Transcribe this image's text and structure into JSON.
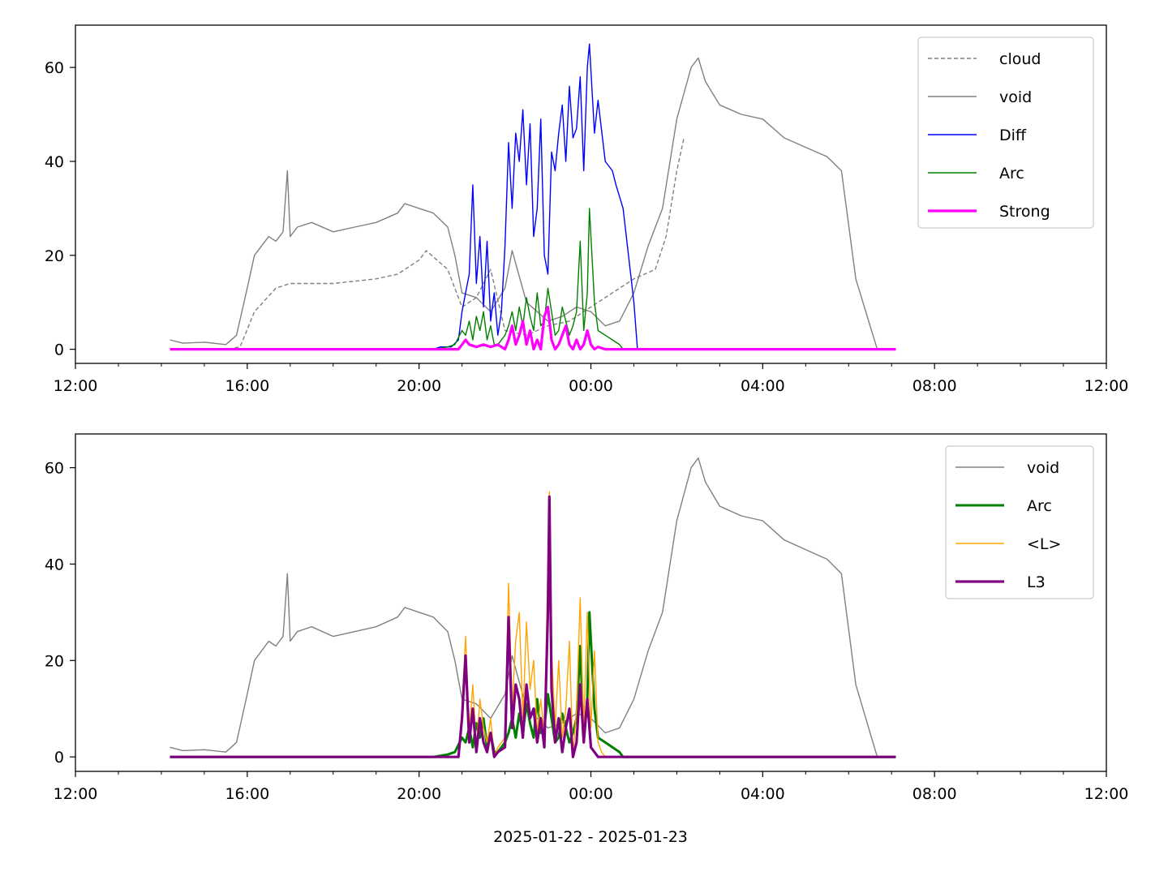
{
  "figure": {
    "xlabel": "2025-01-22 - 2025-01-23"
  },
  "chart_data": [
    {
      "type": "line",
      "title": "",
      "xlabel": "",
      "ylabel": "",
      "xlim": [
        "12:00",
        "12:00 (+1 day)"
      ],
      "ylim": [
        -3,
        69
      ],
      "x_ticks": [
        "12:00",
        "16:00",
        "20:00",
        "00:00",
        "04:00",
        "08:00",
        "12:00"
      ],
      "y_ticks": [
        "0",
        "20",
        "40",
        "60"
      ],
      "legend_position": "top-right",
      "grid": false,
      "series": [
        {
          "name": "cloud",
          "color": "#808080",
          "style": "dashed",
          "width": 1.4,
          "x": [
            "14:12",
            "15:30",
            "15:50",
            "16:10",
            "16:40",
            "17:00",
            "18:00",
            "19:00",
            "19:30",
            "20:00",
            "20:10",
            "20:40",
            "21:00",
            "21:20",
            "21:40",
            "22:00",
            "22:30",
            "23:00",
            "23:30",
            "00:00",
            "00:30",
            "01:00",
            "01:30",
            "01:45",
            "02:00",
            "02:10"
          ],
          "y": [
            0,
            0,
            0.5,
            8,
            13,
            14,
            14,
            15,
            16,
            19,
            21,
            17,
            9,
            11,
            17,
            4,
            3,
            5,
            6,
            9,
            12,
            15,
            17,
            24,
            38,
            45
          ]
        },
        {
          "name": "void",
          "color": "#808080",
          "style": "solid",
          "width": 1.4,
          "x": [
            "14:12",
            "14:30",
            "15:00",
            "15:30",
            "15:45",
            "16:00",
            "16:10",
            "16:20",
            "16:30",
            "16:40",
            "16:50",
            "16:56",
            "17:00",
            "17:10",
            "17:30",
            "18:00",
            "18:30",
            "19:00",
            "19:30",
            "19:40",
            "20:00",
            "20:20",
            "20:40",
            "20:50",
            "21:00",
            "21:20",
            "21:40",
            "22:00",
            "22:10",
            "22:30",
            "23:00",
            "23:20",
            "23:40",
            "00:00",
            "00:20",
            "00:40",
            "01:00",
            "01:20",
            "01:40",
            "02:00",
            "02:20",
            "02:30",
            "02:40",
            "03:00",
            "03:30",
            "04:00",
            "04:30",
            "05:00",
            "05:30",
            "05:50",
            "06:10",
            "06:20",
            "06:30",
            "06:38",
            "06:40",
            "07:06"
          ],
          "y": [
            2,
            1.3,
            1.5,
            1,
            3,
            13,
            20,
            22,
            24,
            23,
            25,
            38,
            24,
            26,
            27,
            25,
            26,
            27,
            29,
            31,
            30,
            29,
            26,
            20,
            12,
            11,
            8,
            13,
            21,
            10,
            6,
            7,
            9,
            8,
            5,
            6,
            12,
            22,
            30,
            49,
            60,
            62,
            57,
            52,
            50,
            49,
            45,
            43,
            41,
            38,
            15,
            10,
            5,
            1,
            0,
            0
          ]
        },
        {
          "name": "Diff",
          "color": "#0000ff",
          "style": "solid",
          "width": 1.4,
          "x": [
            "20:20",
            "20:30",
            "20:45",
            "20:55",
            "21:00",
            "21:05",
            "21:10",
            "21:15",
            "21:20",
            "21:25",
            "21:30",
            "21:35",
            "21:40",
            "21:45",
            "21:50",
            "21:55",
            "22:00",
            "22:05",
            "22:10",
            "22:15",
            "22:20",
            "22:25",
            "22:30",
            "22:35",
            "22:40",
            "22:45",
            "22:50",
            "22:55",
            "23:00",
            "23:05",
            "23:10",
            "23:15",
            "23:20",
            "23:25",
            "23:30",
            "23:35",
            "23:40",
            "23:45",
            "23:50",
            "23:55",
            "23:58",
            "00:05",
            "00:10",
            "00:20",
            "00:30",
            "00:35",
            "00:45",
            "01:00",
            "01:05"
          ],
          "y": [
            0,
            0.5,
            0.5,
            2,
            8,
            12,
            16,
            35,
            14,
            24,
            9,
            23,
            6,
            12,
            3,
            8,
            22,
            44,
            30,
            46,
            40,
            51,
            35,
            48,
            24,
            30,
            49,
            20,
            16,
            42,
            38,
            46,
            52,
            40,
            56,
            45,
            47,
            58,
            38,
            60,
            65,
            46,
            53,
            40,
            38,
            35,
            30,
            10,
            0
          ]
        },
        {
          "name": "Arc",
          "color": "#008000",
          "style": "solid",
          "width": 1.4,
          "x": [
            "20:20",
            "20:40",
            "20:50",
            "21:00",
            "21:05",
            "21:10",
            "21:15",
            "21:20",
            "21:25",
            "21:30",
            "21:35",
            "21:40",
            "21:45",
            "21:50",
            "22:00",
            "22:05",
            "22:10",
            "22:15",
            "22:20",
            "22:25",
            "22:30",
            "22:35",
            "22:40",
            "22:45",
            "22:50",
            "22:55",
            "23:00",
            "23:05",
            "23:10",
            "23:15",
            "23:20",
            "23:25",
            "23:30",
            "23:35",
            "23:40",
            "23:45",
            "23:50",
            "23:55",
            "23:58",
            "00:05",
            "00:10",
            "00:20",
            "00:30",
            "00:40",
            "00:45"
          ],
          "y": [
            0,
            0.5,
            1,
            4,
            3,
            6,
            2,
            7,
            4,
            8,
            2,
            5,
            1,
            1,
            3,
            5,
            8,
            4,
            9,
            5,
            11,
            7,
            4,
            12,
            5,
            6,
            13,
            8,
            3,
            4,
            9,
            6,
            3,
            5,
            8,
            23,
            4,
            12,
            30,
            10,
            4,
            3,
            2,
            1,
            0
          ]
        },
        {
          "name": "Strong",
          "color": "#ff00ff",
          "style": "solid",
          "width": 3.2,
          "x": [
            "14:12",
            "20:55",
            "21:00",
            "21:05",
            "21:10",
            "21:20",
            "21:30",
            "21:40",
            "21:50",
            "22:00",
            "22:05",
            "22:10",
            "22:15",
            "22:20",
            "22:25",
            "22:30",
            "22:35",
            "22:40",
            "22:45",
            "22:50",
            "22:55",
            "23:00",
            "23:05",
            "23:10",
            "23:15",
            "23:20",
            "23:25",
            "23:30",
            "23:35",
            "23:40",
            "23:45",
            "23:50",
            "23:55",
            "00:00",
            "00:05",
            "00:10",
            "00:20",
            "07:06"
          ],
          "y": [
            0,
            0,
            1,
            2,
            1,
            0.5,
            1,
            0.5,
            1,
            0,
            2,
            5,
            1,
            3,
            6,
            1,
            4,
            0,
            2,
            0,
            7,
            9,
            2,
            0,
            1,
            3,
            5,
            1,
            0,
            2,
            0,
            1,
            4,
            1,
            0,
            0.5,
            0,
            0
          ]
        }
      ]
    },
    {
      "type": "line",
      "title": "",
      "xlabel": "2025-01-22 - 2025-01-23",
      "ylabel": "",
      "xlim": [
        "12:00",
        "12:00 (+1 day)"
      ],
      "ylim": [
        -3,
        67
      ],
      "x_ticks": [
        "12:00",
        "16:00",
        "20:00",
        "00:00",
        "04:00",
        "08:00",
        "12:00"
      ],
      "y_ticks": [
        "0",
        "20",
        "40",
        "60"
      ],
      "legend_position": "top-right",
      "grid": false,
      "series": [
        {
          "name": "void",
          "color": "#808080",
          "style": "solid",
          "width": 1.4,
          "x": [
            "14:12",
            "14:30",
            "15:00",
            "15:30",
            "15:45",
            "16:00",
            "16:10",
            "16:20",
            "16:30",
            "16:40",
            "16:50",
            "16:56",
            "17:00",
            "17:10",
            "17:30",
            "18:00",
            "18:30",
            "19:00",
            "19:30",
            "19:40",
            "20:00",
            "20:20",
            "20:40",
            "20:50",
            "21:00",
            "21:20",
            "21:40",
            "22:00",
            "22:10",
            "22:30",
            "23:00",
            "23:20",
            "23:40",
            "00:00",
            "00:20",
            "00:40",
            "01:00",
            "01:20",
            "01:40",
            "02:00",
            "02:20",
            "02:30",
            "02:40",
            "03:00",
            "03:30",
            "04:00",
            "04:30",
            "05:00",
            "05:30",
            "05:50",
            "06:10",
            "06:20",
            "06:30",
            "06:38",
            "06:40",
            "07:06"
          ],
          "y": [
            2,
            1.3,
            1.5,
            1,
            3,
            13,
            20,
            22,
            24,
            23,
            25,
            38,
            24,
            26,
            27,
            25,
            26,
            27,
            29,
            31,
            30,
            29,
            26,
            20,
            12,
            11,
            8,
            13,
            21,
            10,
            6,
            7,
            9,
            8,
            5,
            6,
            12,
            22,
            30,
            49,
            60,
            62,
            57,
            52,
            50,
            49,
            45,
            43,
            41,
            38,
            15,
            10,
            5,
            1,
            0,
            0
          ]
        },
        {
          "name": "Arc",
          "color": "#008000",
          "style": "solid",
          "width": 3.0,
          "x": [
            "14:12",
            "20:20",
            "20:40",
            "20:50",
            "21:00",
            "21:05",
            "21:10",
            "21:15",
            "21:20",
            "21:25",
            "21:30",
            "21:35",
            "21:40",
            "21:45",
            "21:50",
            "22:00",
            "22:05",
            "22:10",
            "22:15",
            "22:20",
            "22:25",
            "22:30",
            "22:35",
            "22:40",
            "22:45",
            "22:50",
            "22:55",
            "23:00",
            "23:05",
            "23:10",
            "23:15",
            "23:20",
            "23:25",
            "23:30",
            "23:35",
            "23:40",
            "23:45",
            "23:50",
            "23:55",
            "23:58",
            "00:05",
            "00:10",
            "00:20",
            "00:30",
            "00:40",
            "00:45",
            "07:06"
          ],
          "y": [
            0,
            0,
            0.5,
            1,
            4,
            3,
            6,
            2,
            7,
            4,
            8,
            2,
            5,
            1,
            1,
            3,
            5,
            8,
            4,
            9,
            5,
            11,
            7,
            4,
            12,
            5,
            6,
            13,
            8,
            3,
            4,
            9,
            6,
            3,
            5,
            8,
            23,
            4,
            12,
            30,
            10,
            4,
            3,
            2,
            1,
            0,
            0
          ]
        },
        {
          "name": "<L>",
          "color": "#ffa500",
          "style": "solid",
          "width": 1.4,
          "x": [
            "14:12",
            "20:55",
            "21:00",
            "21:05",
            "21:10",
            "21:15",
            "21:20",
            "21:25",
            "21:30",
            "21:35",
            "21:40",
            "21:45",
            "21:50",
            "22:00",
            "22:05",
            "22:10",
            "22:15",
            "22:20",
            "22:25",
            "22:30",
            "22:35",
            "22:40",
            "22:45",
            "22:50",
            "22:55",
            "23:00",
            "23:02",
            "23:05",
            "23:10",
            "23:15",
            "23:20",
            "23:25",
            "23:30",
            "23:35",
            "23:40",
            "23:45",
            "23:50",
            "23:55",
            "00:00",
            "00:05",
            "00:10",
            "00:15",
            "00:20",
            "07:06"
          ],
          "y": [
            0,
            0,
            10,
            25,
            5,
            15,
            2,
            12,
            6,
            3,
            8,
            0,
            2,
            4,
            36,
            10,
            24,
            30,
            8,
            28,
            14,
            20,
            5,
            12,
            4,
            40,
            55,
            22,
            6,
            20,
            4,
            10,
            24,
            0,
            10,
            33,
            6,
            30,
            6,
            22,
            3,
            1,
            0,
            0
          ]
        },
        {
          "name": "L3",
          "color": "#800080",
          "style": "solid",
          "width": 3.2,
          "x": [
            "14:12",
            "20:55",
            "21:00",
            "21:05",
            "21:10",
            "21:15",
            "21:20",
            "21:25",
            "21:30",
            "21:35",
            "21:40",
            "21:45",
            "21:50",
            "22:00",
            "22:05",
            "22:10",
            "22:15",
            "22:20",
            "22:25",
            "22:30",
            "22:35",
            "22:40",
            "22:45",
            "22:50",
            "22:55",
            "23:00",
            "23:02",
            "23:05",
            "23:10",
            "23:15",
            "23:20",
            "23:25",
            "23:30",
            "23:35",
            "23:40",
            "23:45",
            "23:50",
            "23:55",
            "00:00",
            "00:05",
            "00:10",
            "07:06"
          ],
          "y": [
            0,
            0,
            8,
            21,
            3,
            10,
            1,
            8,
            3,
            1,
            5,
            0,
            1,
            2,
            29,
            6,
            15,
            12,
            4,
            15,
            8,
            10,
            3,
            8,
            2,
            30,
            54,
            14,
            3,
            8,
            1,
            6,
            10,
            0,
            3,
            15,
            3,
            12,
            2,
            1,
            0,
            0
          ]
        }
      ]
    }
  ]
}
